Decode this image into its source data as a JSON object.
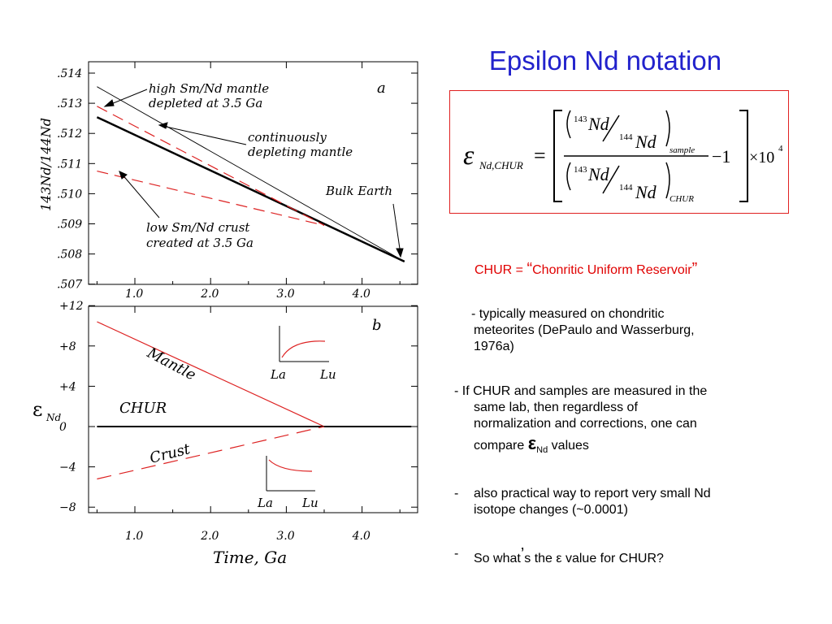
{
  "slide": {
    "title": "Epsilon Nd notation"
  },
  "formula": {
    "epsilon": "ε",
    "eps_sub": "Nd,CHUR",
    "equals": "=",
    "num_top_mass": "143",
    "num_top_el": "Nd",
    "num_bot_mass": "144",
    "num_bot_el": "Nd",
    "sample_sub": "sample",
    "den_top_mass": "143",
    "den_top_el": "Nd",
    "den_bot_mass": "144",
    "den_bot_el": "Nd",
    "chur_sub": "CHUR",
    "minus_one": "−1",
    "times": "×10",
    "exponent": "4"
  },
  "text": {
    "chur_definition_prefix": "CHUR = ",
    "chur_definition_open": "“",
    "chur_definition_name": "Chonritic Uniform Reservoir",
    "chur_definition_close": "”",
    "b1_line1": "- typically measured on chondritic",
    "b1_line2": "meteorites (DePaulo and Wasserburg,",
    "b1_line3": "1976a)",
    "b2_line1": "- If CHUR and samples are measured in the",
    "b2_line2": "same lab, then regardless of",
    "b2_line3": "normalization and corrections, one can",
    "b2_line4_pre": "compare ",
    "b2_eps": "ε",
    "b2_eps_sub": "Nd",
    "b2_line4_post": " values",
    "b3_dash": "-",
    "b3_line1": "also practical way to report very small Nd",
    "b3_line2": "isotope changes (~0.0001)",
    "b4_dash": "-",
    "b4_line1_pre": "So what",
    "b4_apos": "’",
    "b4_line1_post": "s the ε value for CHUR?"
  },
  "chart_data": [
    {
      "type": "line",
      "panel_label": "a",
      "ylabel": "143Nd/144Nd",
      "yticks": [
        ".514",
        ".513",
        ".512",
        ".511",
        ".510",
        ".509",
        ".508",
        ".507"
      ],
      "xticks": [
        "1.0",
        "2.0",
        "3.0",
        "4.0"
      ],
      "series": [
        {
          "name": "Bulk Earth",
          "style": "solid-thick",
          "color": "#000000",
          "x": [
            0.5,
            4.56
          ],
          "y": [
            0.51254,
            0.50775
          ]
        },
        {
          "name": "continuously depleting mantle",
          "style": "solid-thin",
          "color": "#000000",
          "x": [
            0.5,
            4.56
          ],
          "y": [
            0.51355,
            0.50775
          ]
        },
        {
          "name": "high Sm/Nd mantle depleted at 3.5 Ga",
          "style": "dashed",
          "color": "#dd2222",
          "x": [
            0.5,
            3.5
          ],
          "y": [
            0.5129,
            0.50895
          ]
        },
        {
          "name": "low Sm/Nd crust created at 3.5 Ga",
          "style": "dashed",
          "color": "#dd2222",
          "x": [
            0.5,
            3.5
          ],
          "y": [
            0.51075,
            0.50895
          ]
        }
      ],
      "annotations": {
        "mantle_line1": "high Sm/Nd mantle",
        "mantle_line2": "depleted at 3.5 Ga",
        "continuous_line1": "continuously",
        "continuous_line2": "depleting mantle",
        "bulk_earth": "Bulk Earth",
        "crust_line1": "low Sm/Nd crust",
        "crust_line2": "created at 3.5 Ga"
      }
    },
    {
      "type": "line",
      "panel_label": "b",
      "ylabel": "ε",
      "ylabel_sub": "Nd",
      "xlabel": "Time, Ga",
      "yticks": [
        "+12",
        "+8",
        "+4",
        "0",
        "−4",
        "−8"
      ],
      "xticks": [
        "1.0",
        "2.0",
        "3.0",
        "4.0"
      ],
      "series": [
        {
          "name": "Mantle",
          "style": "solid",
          "color": "#dd2222",
          "x": [
            0.5,
            3.5
          ],
          "y": [
            10.4,
            0
          ]
        },
        {
          "name": "CHUR",
          "style": "solid-thick",
          "color": "#000000",
          "x": [
            0.5,
            4.65
          ],
          "y": [
            0,
            0
          ]
        },
        {
          "name": "Crust",
          "style": "dashed",
          "color": "#dd2222",
          "x": [
            0.5,
            3.5
          ],
          "y": [
            -5.2,
            0
          ]
        }
      ],
      "labels": {
        "mantle": "Mantle",
        "chur": "CHUR",
        "crust": "Crust"
      },
      "insets": [
        {
          "x_left": "La",
          "x_right": "Lu",
          "shape": "rising"
        },
        {
          "x_left": "La",
          "x_right": "Lu",
          "shape": "falling"
        }
      ]
    }
  ],
  "colors": {
    "title_blue": "#2222cc",
    "accent_red": "#e00000",
    "box_border": "#e02020"
  }
}
